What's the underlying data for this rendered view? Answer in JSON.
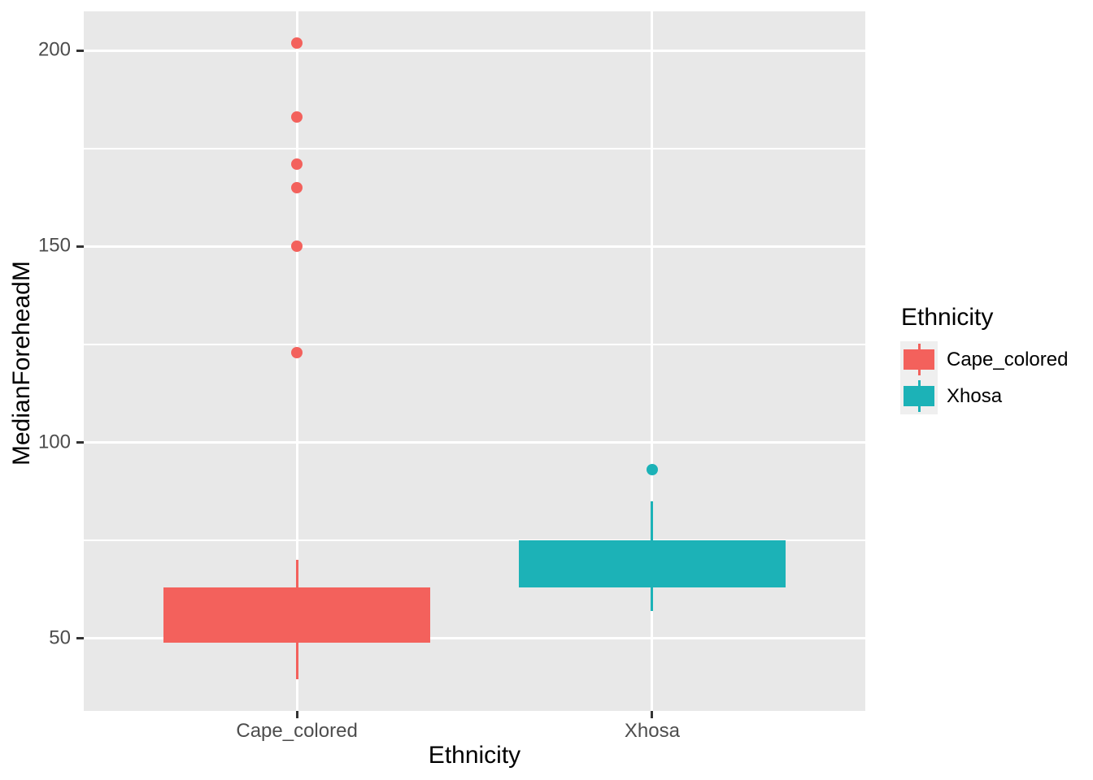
{
  "figure": {
    "background": "#FFFFFF",
    "panel_background": "#E8E8E8",
    "grid_color": "#FFFFFF"
  },
  "axes": {
    "y_title": "MedianForeheadM",
    "x_title": "Ethnicity",
    "y_major_ticks": [
      200,
      150,
      100,
      50
    ],
    "y_minor_gridlines": [
      175,
      125,
      75
    ],
    "x_categories": [
      "Cape_colored",
      "Xhosa"
    ],
    "tick_label_color": "#4D4D4D",
    "tick_mark_color": "#333333",
    "axis_title_color": "#000000"
  },
  "legend": {
    "title": "Ethnicity",
    "key_background": "#EFEFEF",
    "items": [
      {
        "label": "Cape_colored",
        "color": "#F3615C"
      },
      {
        "label": "Xhosa",
        "color": "#1CB2B7"
      }
    ]
  },
  "chart_data": {
    "type": "boxplot",
    "title": "",
    "xlabel": "Ethnicity",
    "ylabel": "MedianForeheadM",
    "categories": [
      "Cape_colored",
      "Xhosa"
    ],
    "ylim": [
      31.5,
      210
    ],
    "grid": true,
    "legend_position": "right",
    "series": [
      {
        "name": "Cape_colored",
        "color": "#F3615C",
        "whisker_low": 39.5,
        "q1": 49,
        "median": null,
        "q3": 63,
        "whisker_high": 70,
        "outliers": [
          202,
          183,
          171,
          165,
          150,
          123
        ]
      },
      {
        "name": "Xhosa",
        "color": "#1CB2B7",
        "whisker_low": 57,
        "q1": 63,
        "median": null,
        "q3": 75,
        "whisker_high": 85,
        "outliers": [
          93
        ]
      }
    ]
  }
}
